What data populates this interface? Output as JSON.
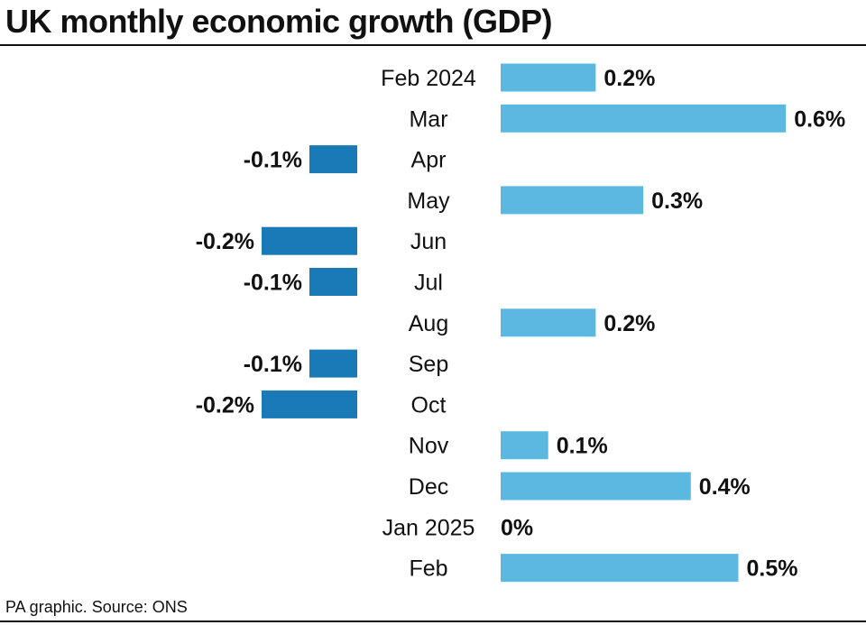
{
  "title": "UK monthly economic growth (GDP)",
  "source": "PA graphic. Source: ONS",
  "colors": {
    "positive": "#5bb8e0",
    "negative": "#1a7ab8",
    "text": "#111111",
    "background": "#ffffff"
  },
  "chart_data": {
    "type": "bar",
    "orientation": "horizontal",
    "title": "UK monthly economic growth (GDP)",
    "xlabel": "",
    "ylabel": "",
    "unit": "%",
    "categories": [
      "Feb 2024",
      "Mar",
      "Apr",
      "May",
      "Jun",
      "Jul",
      "Aug",
      "Sep",
      "Oct",
      "Nov",
      "Dec",
      "Jan 2025",
      "Feb"
    ],
    "values": [
      0.2,
      0.6,
      -0.1,
      0.3,
      -0.2,
      -0.1,
      0.2,
      -0.1,
      -0.2,
      0.1,
      0.4,
      0,
      0.5
    ],
    "labels": [
      "0.2%",
      "0.6%",
      "-0.1%",
      "0.3%",
      "-0.2%",
      "-0.1%",
      "0.2%",
      "-0.1%",
      "-0.2%",
      "0.1%",
      "0.4%",
      "0%",
      "0.5%"
    ],
    "xlim": [
      -0.2,
      0.6
    ],
    "grid": false,
    "legend": "none"
  }
}
